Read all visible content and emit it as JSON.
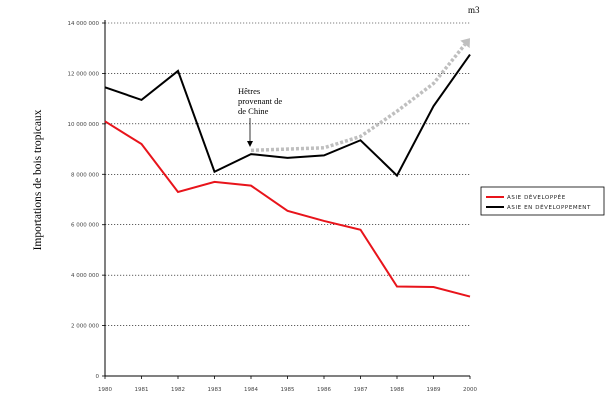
{
  "chart_data": {
    "type": "line",
    "title": "",
    "ylabel": "Importations de bois tropicaux",
    "unit": "m3",
    "xlabel": "",
    "categories": [
      "1980",
      "1981",
      "1982",
      "1983",
      "1984",
      "1985",
      "1986",
      "1987",
      "1988",
      "1989",
      "2000"
    ],
    "x_tick_labels": [
      "1980",
      "1981",
      "1982",
      "1983",
      "1984",
      "1985",
      "1986",
      "1987",
      "1988",
      "1989",
      "2000"
    ],
    "ylim": [
      0,
      14000000
    ],
    "y_ticks": [
      0,
      2000000,
      4000000,
      6000000,
      8000000,
      10000000,
      12000000,
      14000000
    ],
    "y_tick_labels": [
      "0",
      "2 000 000",
      "4 000 000",
      "6 000 000",
      "8 000 000",
      "10 000 000",
      "12 000 000",
      "14 000 000"
    ],
    "grid": "horizontal dotted",
    "legend_position": "right",
    "series": [
      {
        "name": "ASIE DÉVELOPPÉE",
        "color": "#e8141b",
        "values": [
          10100000,
          9200000,
          7300000,
          7700000,
          7550000,
          6550000,
          6150000,
          5800000,
          3550000,
          3530000,
          3150000
        ]
      },
      {
        "name": "ASIE EN DÉVELOPPEMENT",
        "color": "#000000",
        "values": [
          11450000,
          10950000,
          12100000,
          8100000,
          8800000,
          8650000,
          8750000,
          9350000,
          7950000,
          10700000,
          12750000
        ]
      }
    ],
    "trend_arrow": {
      "color": "#bfbfbf",
      "x": [
        "1984",
        "1986",
        "1987",
        "1988",
        "1989",
        "2000"
      ],
      "values": [
        8950000,
        9050000,
        9500000,
        10500000,
        11600000,
        13400000
      ]
    },
    "annotation": {
      "lines": [
        "Hêtres",
        "provenant de",
        "de Chine"
      ],
      "points_to": {
        "x": "1984",
        "value": 8950000
      }
    }
  }
}
